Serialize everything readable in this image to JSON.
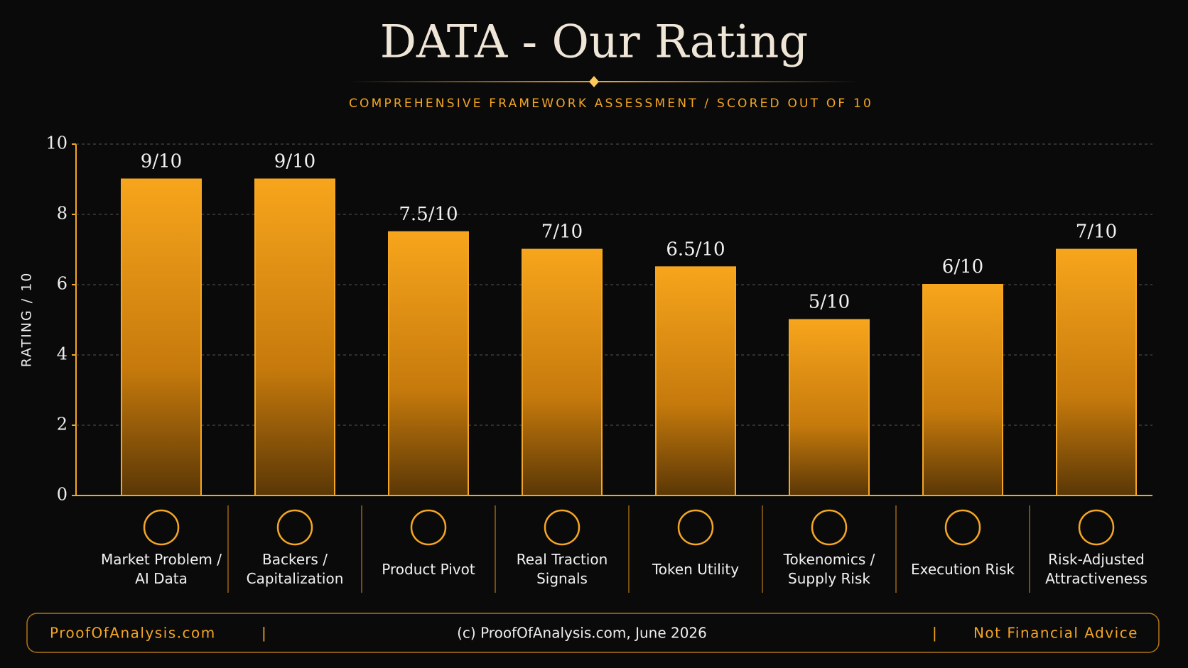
{
  "chart_data": {
    "type": "bar",
    "title": "DATA - Our Rating",
    "subtitle": "COMPREHENSIVE FRAMEWORK ASSESSMENT / SCORED OUT OF 10",
    "y_label": "RATING / 10",
    "categories": [
      "Market Problem / AI Data",
      "Backers / Capitalization",
      "Product Pivot",
      "Real Traction Signals",
      "Token Utility",
      "Tokenomics / Supply Risk",
      "Execution Risk",
      "Risk-Adjusted Attractiveness"
    ],
    "values": [
      9,
      9,
      7.5,
      7,
      6.5,
      5,
      6,
      7
    ],
    "value_labels": [
      "9/10",
      "9/10",
      "7.5/10",
      "7/10",
      "6.5/10",
      "5/10",
      "6/10",
      "7/10"
    ],
    "color": "#f5a623",
    "ylim": [
      0,
      10
    ],
    "yticks": [
      0,
      2,
      4,
      6,
      8,
      10
    ],
    "grid": true,
    "footer": {
      "left": "ProofOfAnalysis.com",
      "center": "(c) ProofOfAnalysis.com, June 2026",
      "right": "Not Financial Advice"
    }
  }
}
